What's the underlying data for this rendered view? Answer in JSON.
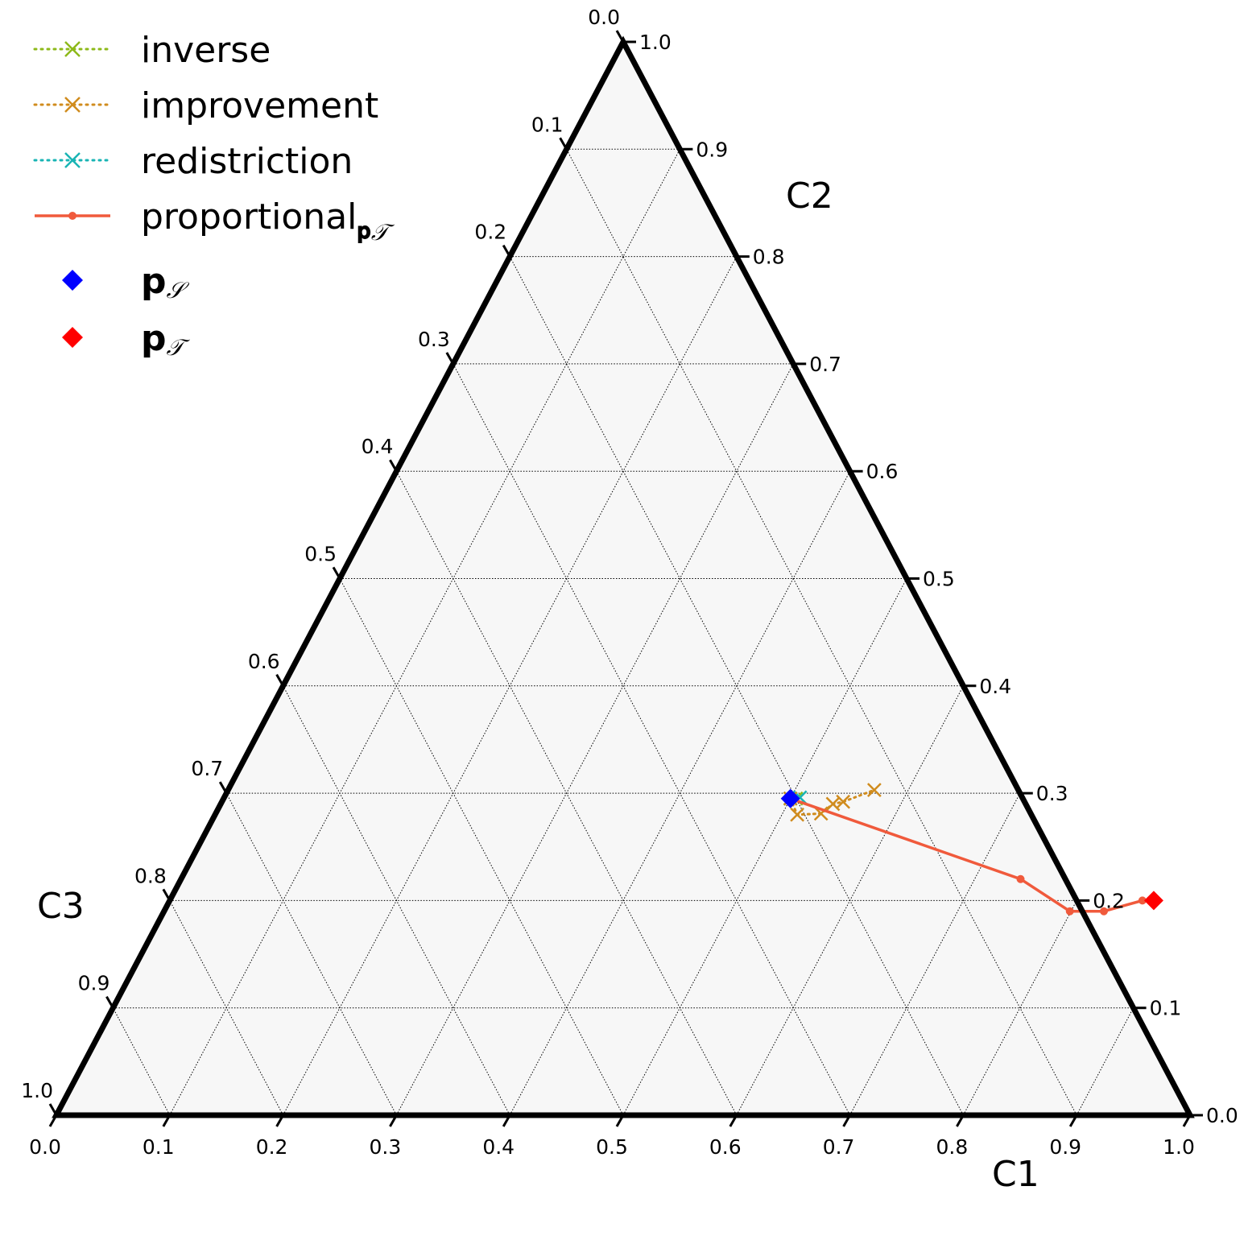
{
  "chart_data": {
    "type": "ternary",
    "axes": {
      "bottom": {
        "label": "C1",
        "ticks": [
          "0.0",
          "0.1",
          "0.2",
          "0.3",
          "0.4",
          "0.5",
          "0.6",
          "0.7",
          "0.8",
          "0.9",
          "1.0"
        ]
      },
      "right": {
        "label": "C2",
        "ticks": [
          "0.0",
          "0.1",
          "0.2",
          "0.3",
          "0.4",
          "0.5",
          "0.6",
          "0.7",
          "0.8",
          "0.9",
          "1.0"
        ]
      },
      "left": {
        "label": "C3",
        "ticks": [
          "0.0",
          "0.1",
          "0.2",
          "0.3",
          "0.4",
          "0.5",
          "0.6",
          "0.7",
          "0.8",
          "0.9",
          "1.0"
        ]
      }
    },
    "grid": true,
    "grid_step": 0.1,
    "legend_position": "top-left",
    "colors": {
      "inverse": "#8db91a",
      "improvement": "#d08c1e",
      "redistriction": "#19b4b4",
      "proportional": "#f05a3c",
      "p_S": "#0000ff",
      "p_T": "#ff0000",
      "background": "#f7f7f7"
    },
    "series": [
      {
        "name": "inverse",
        "marker": "x",
        "line": "dotted",
        "points": [
          [
            0.5,
            0.295
          ],
          [
            0.505,
            0.295
          ]
        ]
      },
      {
        "name": "improvement",
        "marker": "x",
        "line": "dotted",
        "points": [
          [
            0.5,
            0.295
          ],
          [
            0.5135,
            0.28
          ],
          [
            0.534,
            0.281
          ],
          [
            0.54,
            0.29
          ],
          [
            0.548,
            0.292
          ],
          [
            0.57,
            0.303
          ]
        ]
      },
      {
        "name": "redistriction",
        "marker": "x",
        "line": "dotted",
        "points": [
          [
            0.5,
            0.295
          ],
          [
            0.508,
            0.296
          ]
        ]
      },
      {
        "name": "proportional",
        "name_subscript": "𝐩",
        "name_subscript_script": "𝒯",
        "marker": "dot",
        "line": "solid",
        "points": [
          [
            0.5,
            0.295
          ],
          [
            0.7405,
            0.22
          ],
          [
            0.799,
            0.19
          ],
          [
            0.829,
            0.19
          ],
          [
            0.858,
            0.2
          ],
          [
            0.868,
            0.2
          ]
        ]
      },
      {
        "name": "p",
        "name_script": "𝒮",
        "marker": "diamond",
        "points": [
          [
            0.5,
            0.295
          ]
        ]
      },
      {
        "name": "p",
        "name_script": "𝒯",
        "marker": "diamond",
        "points": [
          [
            0.868,
            0.2
          ]
        ]
      }
    ]
  }
}
